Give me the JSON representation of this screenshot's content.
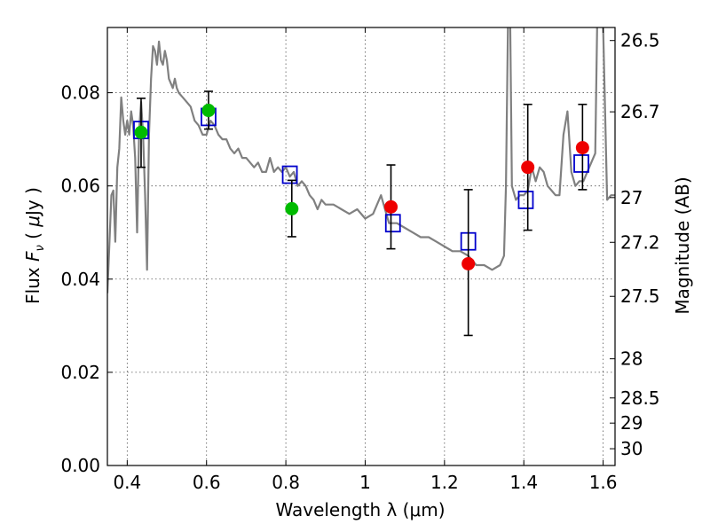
{
  "chart_data": {
    "type": "scatter",
    "xlabel": "Wavelength  λ (μm)",
    "ylabel": "Flux  F_ν  ( μJy )",
    "ylabel_parts": {
      "pre": "Flux  ",
      "sym": "F",
      "sub": "ν",
      "mid": "  ( ",
      "mu": "μ",
      "unit": "Jy )"
    },
    "y2label": "Magnitude (AB)",
    "xlim": [
      0.35,
      1.63
    ],
    "ylim": [
      0.0,
      0.094
    ],
    "grid": true,
    "x_ticks": [
      0.4,
      0.6,
      0.8,
      1.0,
      1.2,
      1.4,
      1.6
    ],
    "x_tick_labels": [
      "0.4",
      "0.6",
      "0.8",
      "1",
      "1.2",
      "1.4",
      "1.6"
    ],
    "y_ticks": [
      0.0,
      0.02,
      0.04,
      0.06,
      0.08
    ],
    "y_tick_labels": [
      "0.00",
      "0.02",
      "0.04",
      "0.06",
      "0.08"
    ],
    "y2_ticks": [
      {
        "label": "26.5",
        "flux": 0.0912
      },
      {
        "label": "26.7",
        "flux": 0.0759
      },
      {
        "label": "27",
        "flux": 0.0575
      },
      {
        "label": "27.2",
        "flux": 0.0479
      },
      {
        "label": "27.5",
        "flux": 0.0363
      },
      {
        "label": "28",
        "flux": 0.0229
      },
      {
        "label": "28.5",
        "flux": 0.0145
      },
      {
        "label": "29",
        "flux": 0.0091
      },
      {
        "label": "30",
        "flux": 0.0036
      }
    ],
    "series": [
      {
        "kind": "line",
        "color": "#808080",
        "x": [
          0.35,
          0.36,
          0.365,
          0.37,
          0.375,
          0.38,
          0.385,
          0.39,
          0.395,
          0.4,
          0.405,
          0.41,
          0.415,
          0.42,
          0.425,
          0.43,
          0.435,
          0.44,
          0.445,
          0.45,
          0.455,
          0.46,
          0.465,
          0.47,
          0.475,
          0.48,
          0.485,
          0.49,
          0.495,
          0.5,
          0.505,
          0.51,
          0.515,
          0.52,
          0.525,
          0.53,
          0.54,
          0.55,
          0.56,
          0.57,
          0.58,
          0.59,
          0.6,
          0.61,
          0.62,
          0.63,
          0.64,
          0.65,
          0.66,
          0.67,
          0.68,
          0.69,
          0.7,
          0.71,
          0.72,
          0.73,
          0.74,
          0.75,
          0.76,
          0.77,
          0.78,
          0.79,
          0.8,
          0.81,
          0.82,
          0.83,
          0.84,
          0.85,
          0.86,
          0.87,
          0.88,
          0.89,
          0.9,
          0.92,
          0.94,
          0.96,
          0.98,
          1.0,
          1.02,
          1.04,
          1.06,
          1.08,
          1.1,
          1.12,
          1.14,
          1.16,
          1.18,
          1.2,
          1.22,
          1.24,
          1.26,
          1.28,
          1.3,
          1.32,
          1.34,
          1.35,
          1.355,
          1.36,
          1.365,
          1.37,
          1.38,
          1.39,
          1.4,
          1.41,
          1.42,
          1.43,
          1.44,
          1.45,
          1.46,
          1.47,
          1.48,
          1.49,
          1.5,
          1.51,
          1.52,
          1.53,
          1.54,
          1.55,
          1.56,
          1.57,
          1.58,
          1.585,
          1.59,
          1.6,
          1.61,
          1.62,
          1.63
        ],
        "y": [
          0.037,
          0.058,
          0.059,
          0.048,
          0.064,
          0.068,
          0.079,
          0.074,
          0.071,
          0.074,
          0.071,
          0.076,
          0.073,
          0.066,
          0.05,
          0.072,
          0.078,
          0.071,
          0.058,
          0.042,
          0.071,
          0.083,
          0.09,
          0.089,
          0.086,
          0.091,
          0.087,
          0.086,
          0.089,
          0.087,
          0.083,
          0.082,
          0.081,
          0.083,
          0.081,
          0.08,
          0.079,
          0.078,
          0.077,
          0.074,
          0.073,
          0.071,
          0.071,
          0.074,
          0.073,
          0.071,
          0.07,
          0.07,
          0.068,
          0.067,
          0.068,
          0.066,
          0.066,
          0.065,
          0.064,
          0.065,
          0.063,
          0.063,
          0.066,
          0.063,
          0.064,
          0.063,
          0.064,
          0.062,
          0.063,
          0.06,
          0.061,
          0.06,
          0.058,
          0.057,
          0.055,
          0.057,
          0.056,
          0.056,
          0.055,
          0.054,
          0.055,
          0.053,
          0.054,
          0.058,
          0.052,
          0.052,
          0.051,
          0.05,
          0.049,
          0.049,
          0.048,
          0.047,
          0.046,
          0.046,
          0.045,
          0.043,
          0.043,
          0.042,
          0.043,
          0.045,
          0.06,
          0.094,
          0.1,
          0.06,
          0.057,
          0.058,
          0.058,
          0.059,
          0.064,
          0.061,
          0.064,
          0.063,
          0.06,
          0.059,
          0.058,
          0.058,
          0.071,
          0.076,
          0.063,
          0.06,
          0.061,
          0.061,
          0.063,
          0.065,
          0.067,
          0.095,
          0.1,
          0.094,
          0.057,
          0.058,
          0.058
        ]
      },
      {
        "kind": "box",
        "color": "#0000cc",
        "x": [
          0.435,
          0.605,
          0.81,
          1.07,
          1.26,
          1.405,
          1.545
        ],
        "y": [
          0.072,
          0.0748,
          0.0624,
          0.052,
          0.0481,
          0.057,
          0.0648
        ]
      },
      {
        "kind": "point",
        "color": "#00bb00",
        "x": [
          0.435,
          0.605,
          0.815
        ],
        "y": [
          0.0715,
          0.0762,
          0.0551
        ],
        "err_low": [
          0.064,
          0.0722,
          0.0491
        ],
        "err_high": [
          0.0788,
          0.0803,
          0.0612
        ]
      },
      {
        "kind": "point",
        "color": "#ee0000",
        "x": [
          1.065,
          1.26,
          1.41,
          1.548
        ],
        "y": [
          0.0555,
          0.0433,
          0.064,
          0.0682
        ],
        "err_low": [
          0.0465,
          0.0279,
          0.0505,
          0.0592
        ],
        "err_high": [
          0.0645,
          0.0592,
          0.0775,
          0.0775
        ]
      }
    ]
  }
}
